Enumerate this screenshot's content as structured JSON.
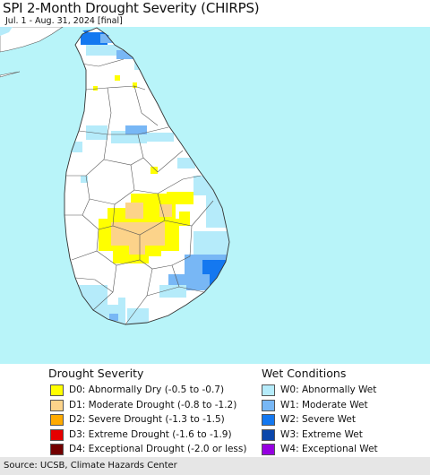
{
  "title": "SPI 2-Month Drought Severity (CHIRPS)",
  "subtitle": "Jul. 1 - Aug. 31, 2024 [final]",
  "map": {
    "ocean_color": "#b8f4f9",
    "land_color": "#ffffff",
    "border_color": "#444444"
  },
  "legend": {
    "drought": {
      "heading": "Drought Severity",
      "items": [
        {
          "label": "D0: Abnormally Dry (-0.5 to -0.7)",
          "color": "#ffff00"
        },
        {
          "label": "D1: Moderate Drought (-0.8 to -1.2)",
          "color": "#fcd38a"
        },
        {
          "label": "D2: Severe Drought (-1.3 to -1.5)",
          "color": "#ffaa00"
        },
        {
          "label": "D3: Extreme Drought (-1.6 to -1.9)",
          "color": "#e60000"
        },
        {
          "label": "D4: Exceptional Drought (-2.0 or less)",
          "color": "#730000"
        }
      ]
    },
    "wet": {
      "heading": "Wet Conditions",
      "items": [
        {
          "label": "W0: Abnormally Wet",
          "color": "#b5ebfa"
        },
        {
          "label": "W1: Moderate Wet",
          "color": "#78b7f5"
        },
        {
          "label": "W2: Severe Wet",
          "color": "#1478f0"
        },
        {
          "label": "W3: Extreme Wet",
          "color": "#0a46aa"
        },
        {
          "label": "W4: Exceptional Wet",
          "color": "#9600e1"
        }
      ]
    }
  },
  "source": "Source: UCSB, Climate Hazards Center"
}
